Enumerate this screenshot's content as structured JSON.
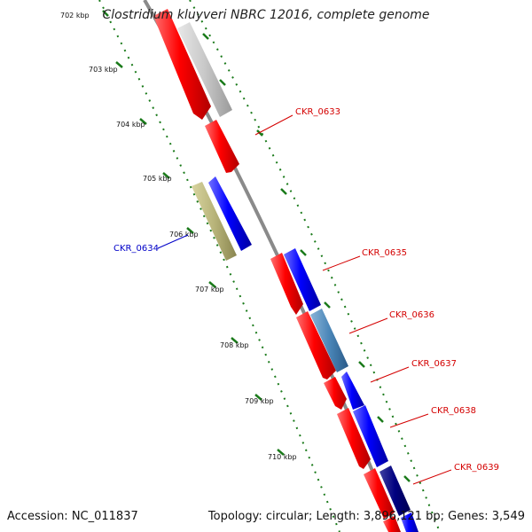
{
  "title": "Clostridium kluyveri NBRC 12016, complete genome",
  "footer": {
    "accession": "Accession: NC_011837",
    "summary": "Topology: circular; Length: 3,896,121 bp; Genes: 3,549"
  },
  "ruler_labels": [
    "702 kbp",
    "703 kbp",
    "704 kbp",
    "705 kbp",
    "706 kbp",
    "707 kbp",
    "708 kbp",
    "709 kbp",
    "710 kbp"
  ],
  "gene_labels": [
    {
      "text": "CKR_0633",
      "color": "#d40000"
    },
    {
      "text": "CKR_0634",
      "color": "#0000c8"
    },
    {
      "text": "CKR_0635",
      "color": "#d40000"
    },
    {
      "text": "CKR_0636",
      "color": "#d40000"
    },
    {
      "text": "CKR_0637",
      "color": "#d40000"
    },
    {
      "text": "CKR_0638",
      "color": "#d40000"
    },
    {
      "text": "CKR_0639",
      "color": "#d40000"
    }
  ],
  "colors": {
    "backbone": "#8a8a8a",
    "tick": "#1a7a1a",
    "forward_red": "#ff0000",
    "gray_feature": "#c8c8c8",
    "blue_feature": "#1a1aff",
    "olive_feature": "#b8b47a",
    "steel_feature": "#4a86b8",
    "navy_feature": "#000080"
  }
}
